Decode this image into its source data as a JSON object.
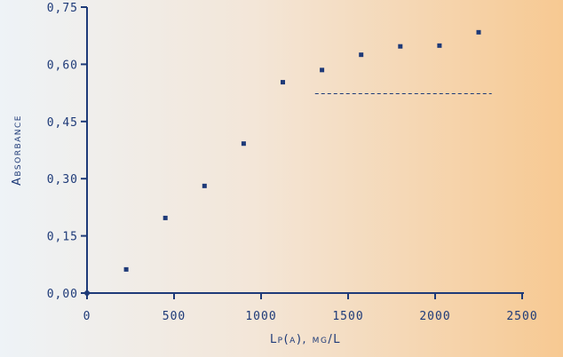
{
  "chart_data": {
    "type": "scatter",
    "xlabel": "Lp(a), mg/L",
    "ylabel": "Absorbance",
    "xlim": [
      0,
      2500
    ],
    "ylim": [
      0,
      0.75
    ],
    "x_ticks": [
      "0",
      "500",
      "1000",
      "1500",
      "2000",
      "2500"
    ],
    "y_ticks": [
      "0,00",
      "0,15",
      "0,30",
      "0,45",
      "0,60",
      "0,75"
    ],
    "series": [
      {
        "x": [
          225,
          450,
          675,
          900,
          1125,
          1350,
          1575,
          1800,
          2025,
          2250
        ],
        "y": [
          0.062,
          0.197,
          0.281,
          0.392,
          0.553,
          0.585,
          0.625,
          0.647,
          0.649,
          0.684
        ]
      }
    ],
    "reference_line": {
      "type": "horizontal",
      "y": 0.523,
      "x_range": [
        1310,
        2325
      ],
      "style": "dashed"
    },
    "grid": false,
    "colors": {
      "marks": "#1e3a78",
      "axis": "#1e3a78"
    }
  }
}
